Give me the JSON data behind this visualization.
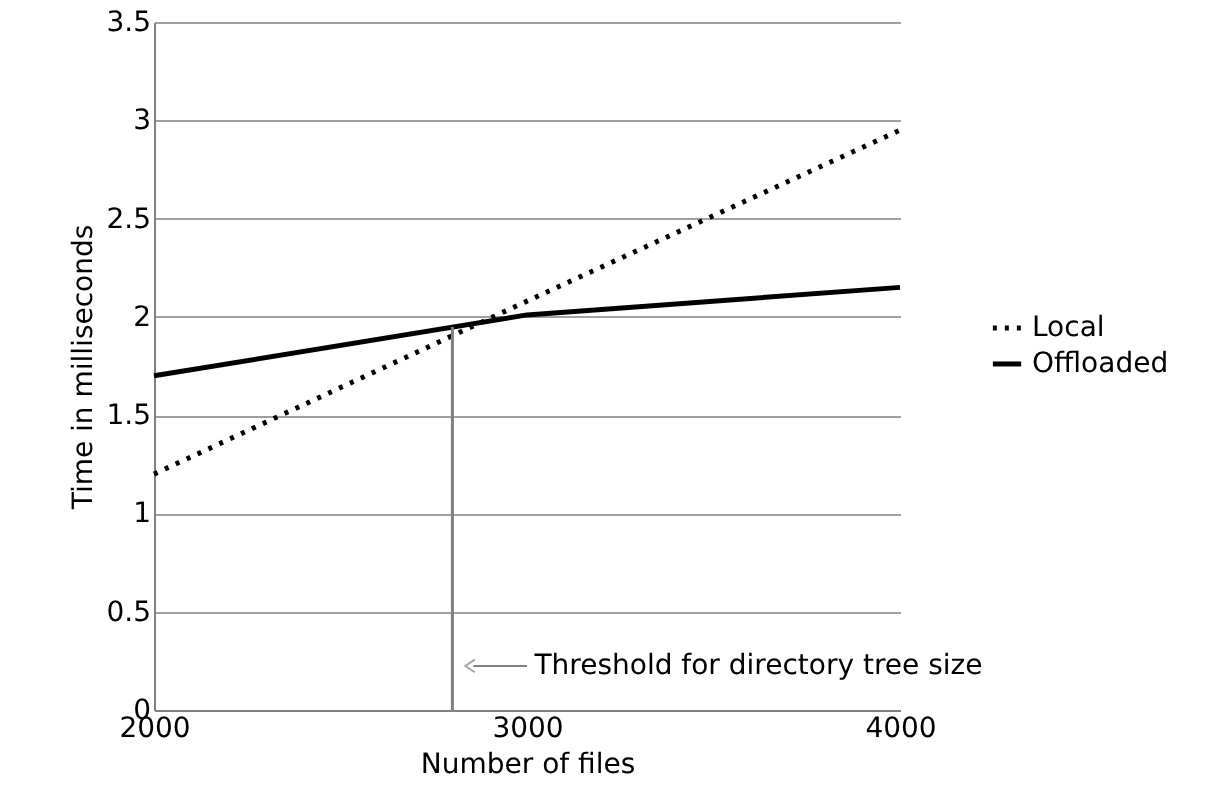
{
  "chart_data": {
    "type": "line",
    "xlabel": "Number of files",
    "ylabel": "Time in milliseconds",
    "x": [
      2000,
      3000,
      4000
    ],
    "series": [
      {
        "name": "Local",
        "color": "#000000",
        "line_style": "dotted",
        "values": [
          1.2,
          2.08,
          2.95
        ]
      },
      {
        "name": "Offloaded",
        "color": "#000000",
        "line_style": "solid",
        "values": [
          1.7,
          2.01,
          2.15
        ]
      }
    ],
    "xlim": [
      2000,
      4000
    ],
    "xticks": [
      2000,
      3000,
      4000
    ],
    "ylim": [
      0,
      3.5
    ],
    "yticks": [
      0,
      0.5,
      1,
      1.5,
      2,
      2.5,
      3,
      3.5
    ],
    "grid": "y",
    "legend": "right",
    "marker": "none",
    "ref_lines": [
      {
        "axis": "x",
        "value": 2800,
        "label": "Threshold for directory tree size",
        "color": "#808080"
      }
    ]
  }
}
